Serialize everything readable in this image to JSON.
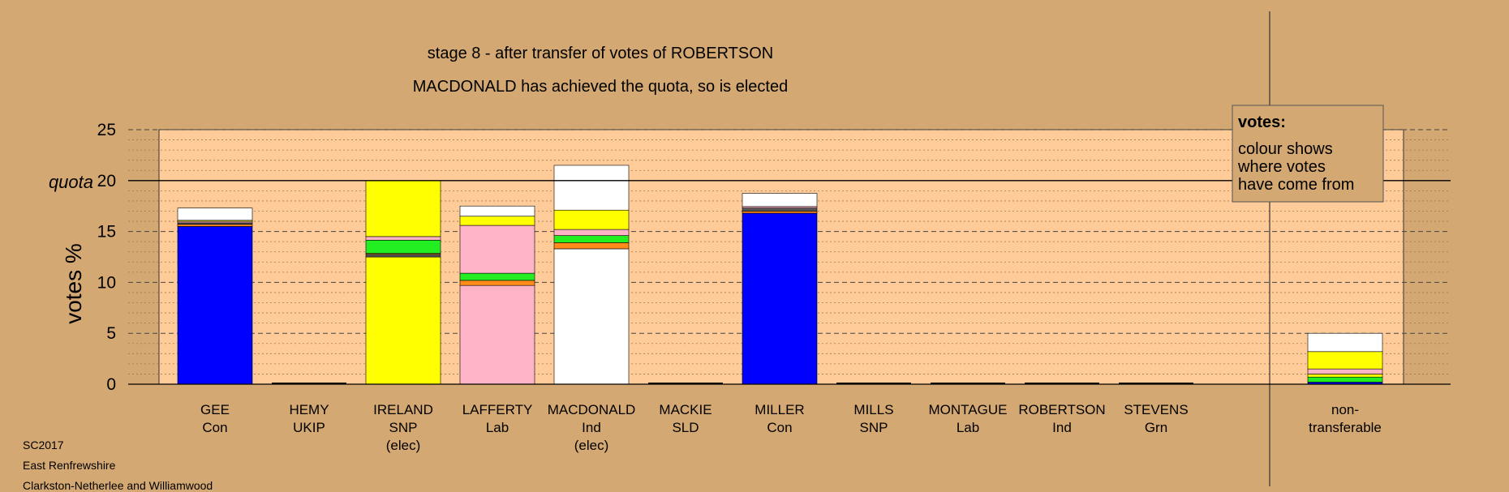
{
  "header": {
    "title": "stage 8 - after transfer of votes of ROBERTSON",
    "subtitle": "MACDONALD has achieved the quota, so is elected"
  },
  "info": [
    "SC2017",
    "East Renfrewshire",
    "Clarkston-Netherlee and Williamwood"
  ],
  "legend": {
    "title": "votes:",
    "lines": [
      "colour shows",
      "where votes",
      "have come from"
    ]
  },
  "colors": {
    "background": "#D4A872",
    "plot_area": "#FFCC99",
    "Con": "#0000FF",
    "SNP": "#FFFF00",
    "Lab": "#FFB3C6",
    "Ind": "#FFFFFF",
    "SLD": "#FF8C1A",
    "Grn": "#22EE22",
    "UKIP": "#B026B0",
    "other": "#555555"
  },
  "chart_data": {
    "type": "bar",
    "stacked": true,
    "ylabel": "votes %",
    "ylim": [
      0,
      25
    ],
    "yticks": [
      0,
      5,
      10,
      15,
      20,
      25
    ],
    "quota": 20,
    "quota_label": "quota",
    "grid": true,
    "candidates": [
      {
        "name": "GEE",
        "party": "Con",
        "note": "",
        "segments": [
          {
            "color": "Con",
            "value": 15.5
          },
          {
            "color": "SLD",
            "value": 0.2
          },
          {
            "color": "other",
            "value": 0.15
          },
          {
            "color": "Lab",
            "value": 0.15
          },
          {
            "color": "SNP",
            "value": 0.1
          },
          {
            "color": "Ind",
            "value": 1.2
          }
        ]
      },
      {
        "name": "HEMY",
        "party": "UKIP",
        "note": "",
        "segments": []
      },
      {
        "name": "IRELAND",
        "party": "SNP",
        "note": "(elec)",
        "segments": [
          {
            "color": "SNP",
            "value": 12.5
          },
          {
            "color": "other",
            "value": 0.25
          },
          {
            "color": "SLD",
            "value": 0.1
          },
          {
            "color": "Grn",
            "value": 1.3
          },
          {
            "color": "Lab",
            "value": 0.35
          },
          {
            "color": "SNP",
            "value": 5.5
          }
        ]
      },
      {
        "name": "LAFFERTY",
        "party": "Lab",
        "note": "",
        "segments": [
          {
            "color": "Lab",
            "value": 9.7
          },
          {
            "color": "SLD",
            "value": 0.5
          },
          {
            "color": "Grn",
            "value": 0.7
          },
          {
            "color": "Lab",
            "value": 4.7
          },
          {
            "color": "SNP",
            "value": 0.9
          },
          {
            "color": "Ind",
            "value": 1.0
          }
        ]
      },
      {
        "name": "MACDONALD",
        "party": "Ind",
        "note": "(elec)",
        "segments": [
          {
            "color": "Ind",
            "value": 13.3
          },
          {
            "color": "SLD",
            "value": 0.6
          },
          {
            "color": "Grn",
            "value": 0.7
          },
          {
            "color": "Lab",
            "value": 0.6
          },
          {
            "color": "SNP",
            "value": 1.9
          },
          {
            "color": "Ind",
            "value": 4.4
          }
        ]
      },
      {
        "name": "MACKIE",
        "party": "SLD",
        "note": "",
        "segments": []
      },
      {
        "name": "MILLER",
        "party": "Con",
        "note": "",
        "segments": [
          {
            "color": "Con",
            "value": 16.8
          },
          {
            "color": "SLD",
            "value": 0.2
          },
          {
            "color": "other",
            "value": 0.3
          },
          {
            "color": "Lab",
            "value": 0.15
          },
          {
            "color": "Ind",
            "value": 1.3
          }
        ]
      },
      {
        "name": "MILLS",
        "party": "SNP",
        "note": "",
        "segments": []
      },
      {
        "name": "MONTAGUE",
        "party": "Lab",
        "note": "",
        "segments": []
      },
      {
        "name": "ROBERTSON",
        "party": "Ind",
        "note": "",
        "segments": []
      },
      {
        "name": "STEVENS",
        "party": "Grn",
        "note": "",
        "segments": []
      }
    ],
    "nontransferable": {
      "label": [
        "non-",
        "transferable"
      ],
      "segments": [
        {
          "color": "Con",
          "value": 0.2
        },
        {
          "color": "Grn",
          "value": 0.5
        },
        {
          "color": "SNP",
          "value": 0.3
        },
        {
          "color": "Lab",
          "value": 0.5
        },
        {
          "color": "SNP",
          "value": 1.7
        },
        {
          "color": "Ind",
          "value": 1.8
        }
      ]
    }
  }
}
